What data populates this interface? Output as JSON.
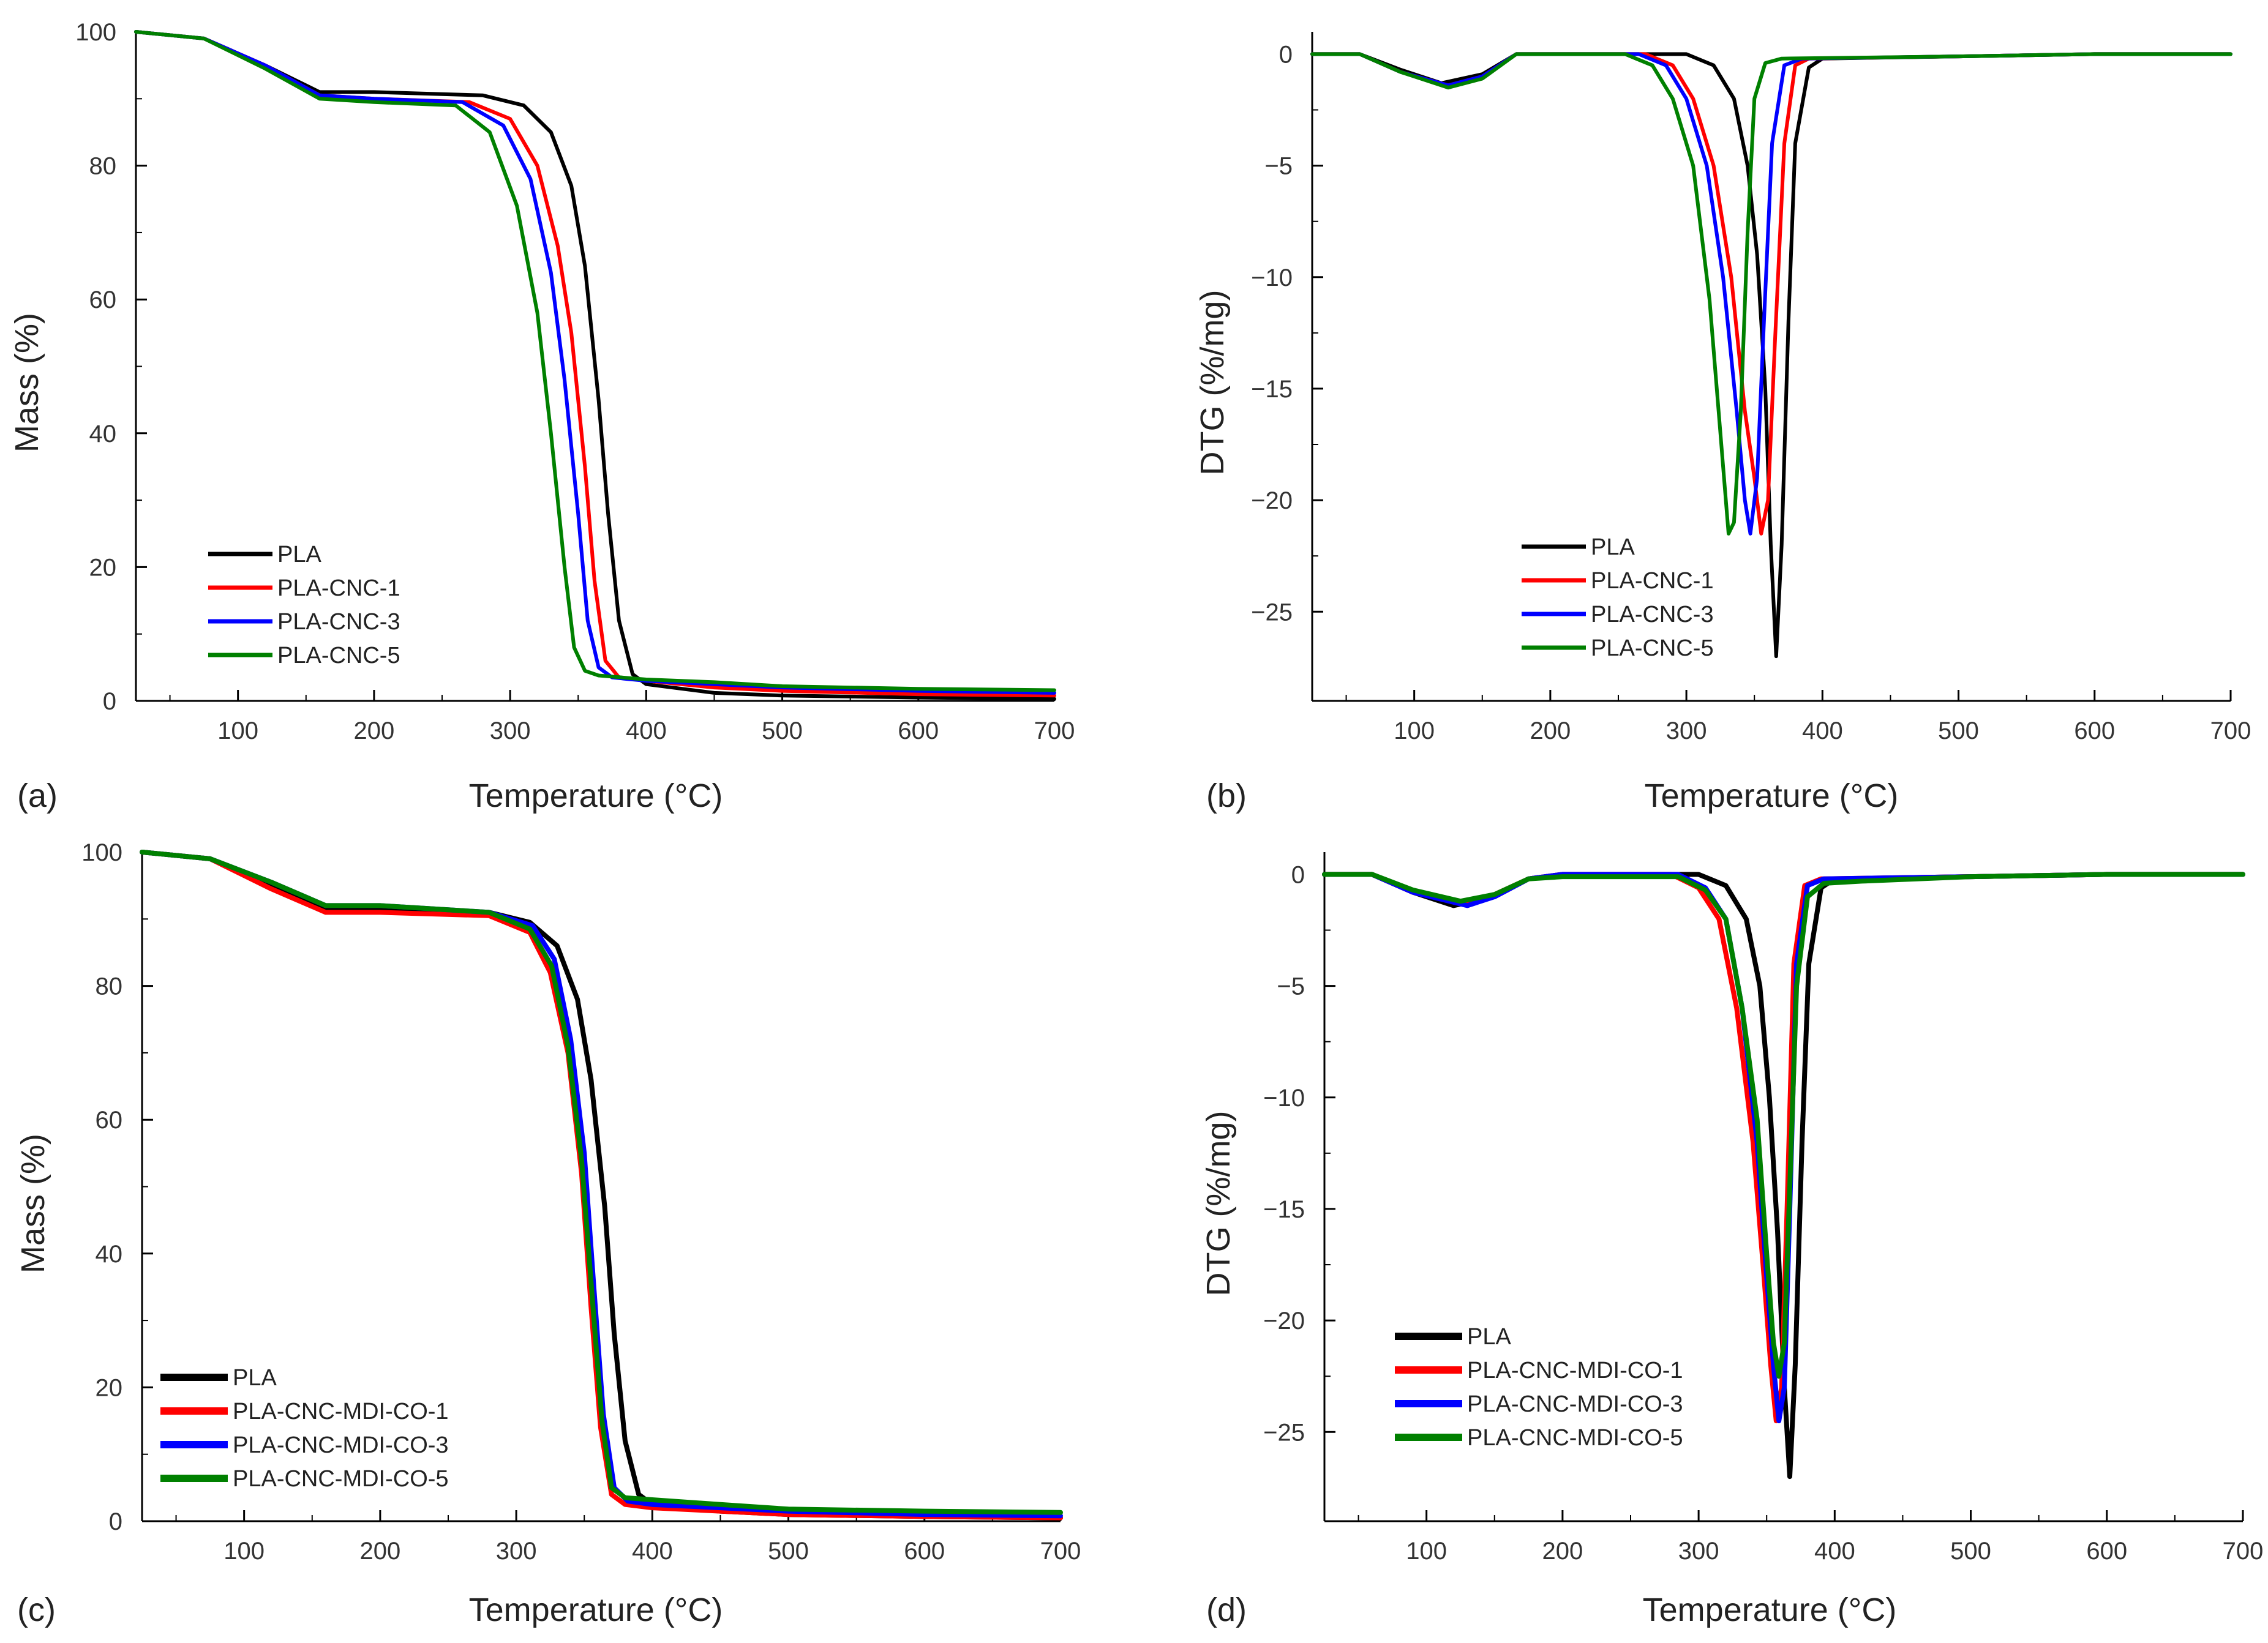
{
  "chart_data": [
    {
      "panel": "(a)",
      "type": "line",
      "xlabel": "Temperature (°C)",
      "ylabel": "Mass (%)",
      "xlim": [
        25,
        700
      ],
      "ylim": [
        0,
        100
      ],
      "xticks": [
        100,
        200,
        300,
        400,
        500,
        600,
        700
      ],
      "yticks": [
        0,
        20,
        40,
        60,
        80,
        100
      ],
      "xtick_labels": [
        "100",
        "200",
        "300",
        "400",
        "500",
        "600",
        "700"
      ],
      "ytick_labels": [
        "0",
        "20",
        "40",
        "60",
        "80",
        "100"
      ],
      "legend": "bottom-left",
      "series": [
        {
          "name": "PLA",
          "color": "#000000",
          "x": [
            25,
            75,
            120,
            160,
            200,
            280,
            310,
            330,
            345,
            355,
            365,
            372,
            380,
            390,
            400,
            450,
            500,
            600,
            700
          ],
          "y": [
            100,
            99,
            95,
            91,
            91,
            90.5,
            89,
            85,
            77,
            65,
            45,
            28,
            12,
            4,
            2.5,
            1.2,
            0.8,
            0.5,
            0.3
          ]
        },
        {
          "name": "PLA-CNC-1",
          "color": "#ff0000",
          "x": [
            25,
            75,
            120,
            160,
            200,
            270,
            300,
            320,
            335,
            345,
            355,
            362,
            370,
            380,
            400,
            450,
            500,
            600,
            700
          ],
          "y": [
            100,
            99,
            95,
            90.5,
            90,
            89.5,
            87,
            80,
            68,
            55,
            35,
            18,
            6,
            3.5,
            3,
            2,
            1.5,
            1,
            0.8
          ]
        },
        {
          "name": "PLA-CNC-3",
          "color": "#0000ff",
          "x": [
            25,
            75,
            120,
            160,
            200,
            265,
            295,
            315,
            330,
            340,
            350,
            357,
            365,
            375,
            400,
            450,
            500,
            600,
            700
          ],
          "y": [
            100,
            99,
            95,
            90.5,
            90,
            89.5,
            86,
            78,
            64,
            48,
            28,
            12,
            5,
            3.5,
            3,
            2.5,
            2,
            1.5,
            1.2
          ]
        },
        {
          "name": "PLA-CNC-5",
          "color": "#008000",
          "x": [
            25,
            75,
            120,
            160,
            200,
            260,
            285,
            305,
            320,
            330,
            340,
            347,
            355,
            365,
            400,
            450,
            500,
            600,
            700
          ],
          "y": [
            100,
            99,
            94.5,
            90,
            89.5,
            89,
            85,
            74,
            58,
            40,
            20,
            8,
            4.5,
            3.8,
            3.2,
            2.8,
            2.2,
            1.8,
            1.6
          ]
        }
      ]
    },
    {
      "panel": "(b)",
      "type": "line",
      "xlabel": "Temperature (°C)",
      "ylabel": "DTG (%/mg)",
      "xlim": [
        25,
        700
      ],
      "ylim": [
        -29,
        1
      ],
      "xticks": [
        100,
        200,
        300,
        400,
        500,
        600,
        700
      ],
      "yticks": [
        0,
        -5,
        -10,
        -15,
        -20,
        -25
      ],
      "xtick_labels": [
        "100",
        "200",
        "300",
        "400",
        "500",
        "600",
        "700"
      ],
      "ytick_labels": [
        "0",
        "−5",
        "−10",
        "−15",
        "−20",
        "−25"
      ],
      "legend": "bottom-center",
      "series": [
        {
          "name": "PLA",
          "color": "#000000",
          "x": [
            25,
            60,
            90,
            120,
            150,
            175,
            200,
            300,
            320,
            335,
            345,
            352,
            358,
            362,
            366,
            370,
            375,
            380,
            390,
            400,
            500,
            600,
            700
          ],
          "y": [
            0,
            0,
            -0.7,
            -1.3,
            -0.9,
            0,
            0,
            0,
            -0.5,
            -2,
            -5,
            -9,
            -15,
            -22,
            -27,
            -22,
            -12,
            -4,
            -0.6,
            -0.2,
            -0.1,
            0,
            0
          ]
        },
        {
          "name": "PLA-CNC-1",
          "color": "#ff0000",
          "x": [
            25,
            60,
            90,
            125,
            150,
            175,
            200,
            270,
            290,
            305,
            320,
            333,
            343,
            350,
            355,
            360,
            365,
            372,
            380,
            390,
            500,
            600,
            700
          ],
          "y": [
            0,
            0,
            -0.8,
            -1.4,
            -1.0,
            0,
            0,
            0,
            -0.5,
            -2,
            -5,
            -10,
            -16,
            -19,
            -21.5,
            -20,
            -13,
            -4,
            -0.5,
            -0.2,
            -0.1,
            0,
            0
          ]
        },
        {
          "name": "PLA-CNC-3",
          "color": "#0000ff",
          "x": [
            25,
            60,
            90,
            125,
            150,
            175,
            200,
            265,
            285,
            300,
            315,
            327,
            337,
            343,
            347,
            352,
            357,
            363,
            372,
            385,
            500,
            600,
            700
          ],
          "y": [
            0,
            0,
            -0.8,
            -1.4,
            -1.0,
            0,
            0,
            0,
            -0.5,
            -2,
            -5,
            -10,
            -16,
            -20,
            -21.5,
            -19,
            -12,
            -4,
            -0.5,
            -0.2,
            -0.1,
            0,
            0
          ]
        },
        {
          "name": "PLA-CNC-5",
          "color": "#008000",
          "x": [
            25,
            60,
            90,
            125,
            150,
            175,
            200,
            255,
            275,
            290,
            305,
            317,
            325,
            331,
            335,
            340,
            345,
            350,
            358,
            370,
            500,
            600,
            700
          ],
          "y": [
            0,
            0,
            -0.8,
            -1.5,
            -1.1,
            0,
            0,
            0,
            -0.5,
            -2,
            -5,
            -11,
            -17,
            -21.5,
            -21,
            -16,
            -8,
            -2,
            -0.4,
            -0.2,
            -0.1,
            0,
            0
          ]
        }
      ]
    },
    {
      "panel": "(c)",
      "type": "line",
      "xlabel": "Temperature (°C)",
      "ylabel": "Mass (%)",
      "xlim": [
        25,
        700
      ],
      "ylim": [
        0,
        100
      ],
      "xticks": [
        100,
        200,
        300,
        400,
        500,
        600,
        700
      ],
      "yticks": [
        0,
        20,
        40,
        60,
        80,
        100
      ],
      "xtick_labels": [
        "100",
        "200",
        "300",
        "400",
        "500",
        "600",
        "700"
      ],
      "ytick_labels": [
        "0",
        "20",
        "40",
        "60",
        "80",
        "100"
      ],
      "legend": "bottom-left",
      "series": [
        {
          "name": "PLA",
          "color": "#000000",
          "x": [
            25,
            75,
            120,
            160,
            200,
            280,
            310,
            330,
            345,
            355,
            365,
            372,
            380,
            390,
            400,
            450,
            500,
            600,
            700
          ],
          "y": [
            100,
            99,
            95,
            91.5,
            91.5,
            91,
            89.5,
            86,
            78,
            66,
            47,
            28,
            12,
            4,
            2.5,
            1.5,
            1,
            0.7,
            0.5
          ]
        },
        {
          "name": "PLA-CNC-MDI-CO-1",
          "color": "#ff0000",
          "x": [
            25,
            75,
            120,
            160,
            200,
            280,
            310,
            325,
            338,
            348,
            355,
            362,
            370,
            380,
            400,
            450,
            500,
            600,
            700
          ],
          "y": [
            100,
            99,
            94.5,
            91,
            91,
            90.5,
            88,
            82,
            70,
            52,
            32,
            14,
            4,
            2.5,
            2,
            1.5,
            1,
            0.7,
            0.5
          ]
        },
        {
          "name": "PLA-CNC-MDI-CO-3",
          "color": "#0000ff",
          "x": [
            25,
            75,
            120,
            160,
            200,
            280,
            312,
            328,
            340,
            350,
            357,
            364,
            372,
            382,
            400,
            450,
            500,
            600,
            700
          ],
          "y": [
            100,
            99,
            95.5,
            92,
            92,
            91,
            89,
            84,
            72,
            55,
            35,
            16,
            5,
            3,
            2.5,
            2,
            1.5,
            1,
            0.8
          ]
        },
        {
          "name": "PLA-CNC-MDI-CO-5",
          "color": "#008000",
          "x": [
            25,
            75,
            120,
            160,
            200,
            280,
            310,
            326,
            338,
            348,
            356,
            363,
            370,
            380,
            400,
            450,
            500,
            600,
            700
          ],
          "y": [
            100,
            99,
            95.5,
            92,
            92,
            91,
            88.5,
            83,
            71,
            54,
            33,
            15,
            5,
            3.5,
            3.2,
            2.5,
            1.8,
            1.5,
            1.3
          ]
        }
      ]
    },
    {
      "panel": "(d)",
      "type": "line",
      "xlabel": "Temperature (°C)",
      "ylabel": "DTG (%/mg)",
      "xlim": [
        25,
        700
      ],
      "ylim": [
        -29,
        1
      ],
      "xticks": [
        100,
        200,
        300,
        400,
        500,
        600,
        700
      ],
      "yticks": [
        0,
        -5,
        -10,
        -15,
        -20,
        -25
      ],
      "xtick_labels": [
        "100",
        "200",
        "300",
        "400",
        "500",
        "600",
        "700"
      ],
      "ytick_labels": [
        "0",
        "−5",
        "−10",
        "−15",
        "−20",
        "−25"
      ],
      "legend": "bottom-left",
      "series": [
        {
          "name": "PLA",
          "color": "#000000",
          "x": [
            25,
            60,
            90,
            120,
            150,
            175,
            200,
            300,
            320,
            335,
            345,
            352,
            358,
            363,
            367,
            371,
            376,
            381,
            390,
            400,
            500,
            600,
            700
          ],
          "y": [
            0,
            0,
            -0.8,
            -1.4,
            -1.0,
            -0.2,
            0,
            0,
            -0.5,
            -2,
            -5,
            -10,
            -16,
            -23,
            -27,
            -22,
            -12,
            -4,
            -0.6,
            -0.2,
            -0.1,
            0,
            0
          ]
        },
        {
          "name": "PLA-CNC-MDI-CO-1",
          "color": "#ff0000",
          "x": [
            25,
            60,
            90,
            125,
            150,
            175,
            200,
            280,
            300,
            315,
            328,
            340,
            348,
            353,
            357,
            361,
            365,
            370,
            378,
            390,
            500,
            600,
            700
          ],
          "y": [
            0,
            0,
            -0.8,
            -1.3,
            -0.9,
            -0.2,
            0,
            0,
            -0.6,
            -2,
            -6,
            -12,
            -18,
            -22,
            -24.5,
            -23,
            -15,
            -4,
            -0.5,
            -0.2,
            -0.1,
            0,
            0
          ]
        },
        {
          "name": "PLA-CNC-MDI-CO-3",
          "color": "#0000ff",
          "x": [
            25,
            60,
            90,
            130,
            150,
            175,
            200,
            285,
            305,
            320,
            332,
            343,
            350,
            355,
            359,
            363,
            367,
            372,
            380,
            392,
            500,
            600,
            700
          ],
          "y": [
            0,
            0,
            -0.8,
            -1.4,
            -1.0,
            -0.2,
            0,
            0,
            -0.6,
            -2,
            -6,
            -12,
            -18,
            -22,
            -24.5,
            -23,
            -15,
            -4,
            -0.5,
            -0.2,
            -0.1,
            0,
            0
          ]
        },
        {
          "name": "PLA-CNC-MDI-CO-5",
          "color": "#008000",
          "x": [
            25,
            60,
            90,
            125,
            150,
            175,
            200,
            285,
            305,
            320,
            332,
            343,
            350,
            355,
            359,
            363,
            367,
            372,
            380,
            392,
            420,
            500,
            600,
            700
          ],
          "y": [
            0,
            0,
            -0.7,
            -1.2,
            -0.9,
            -0.2,
            -0.1,
            -0.1,
            -0.7,
            -2,
            -6,
            -11,
            -17,
            -21,
            -22.5,
            -21,
            -14,
            -5,
            -1,
            -0.4,
            -0.3,
            -0.1,
            0,
            0
          ]
        }
      ]
    }
  ]
}
